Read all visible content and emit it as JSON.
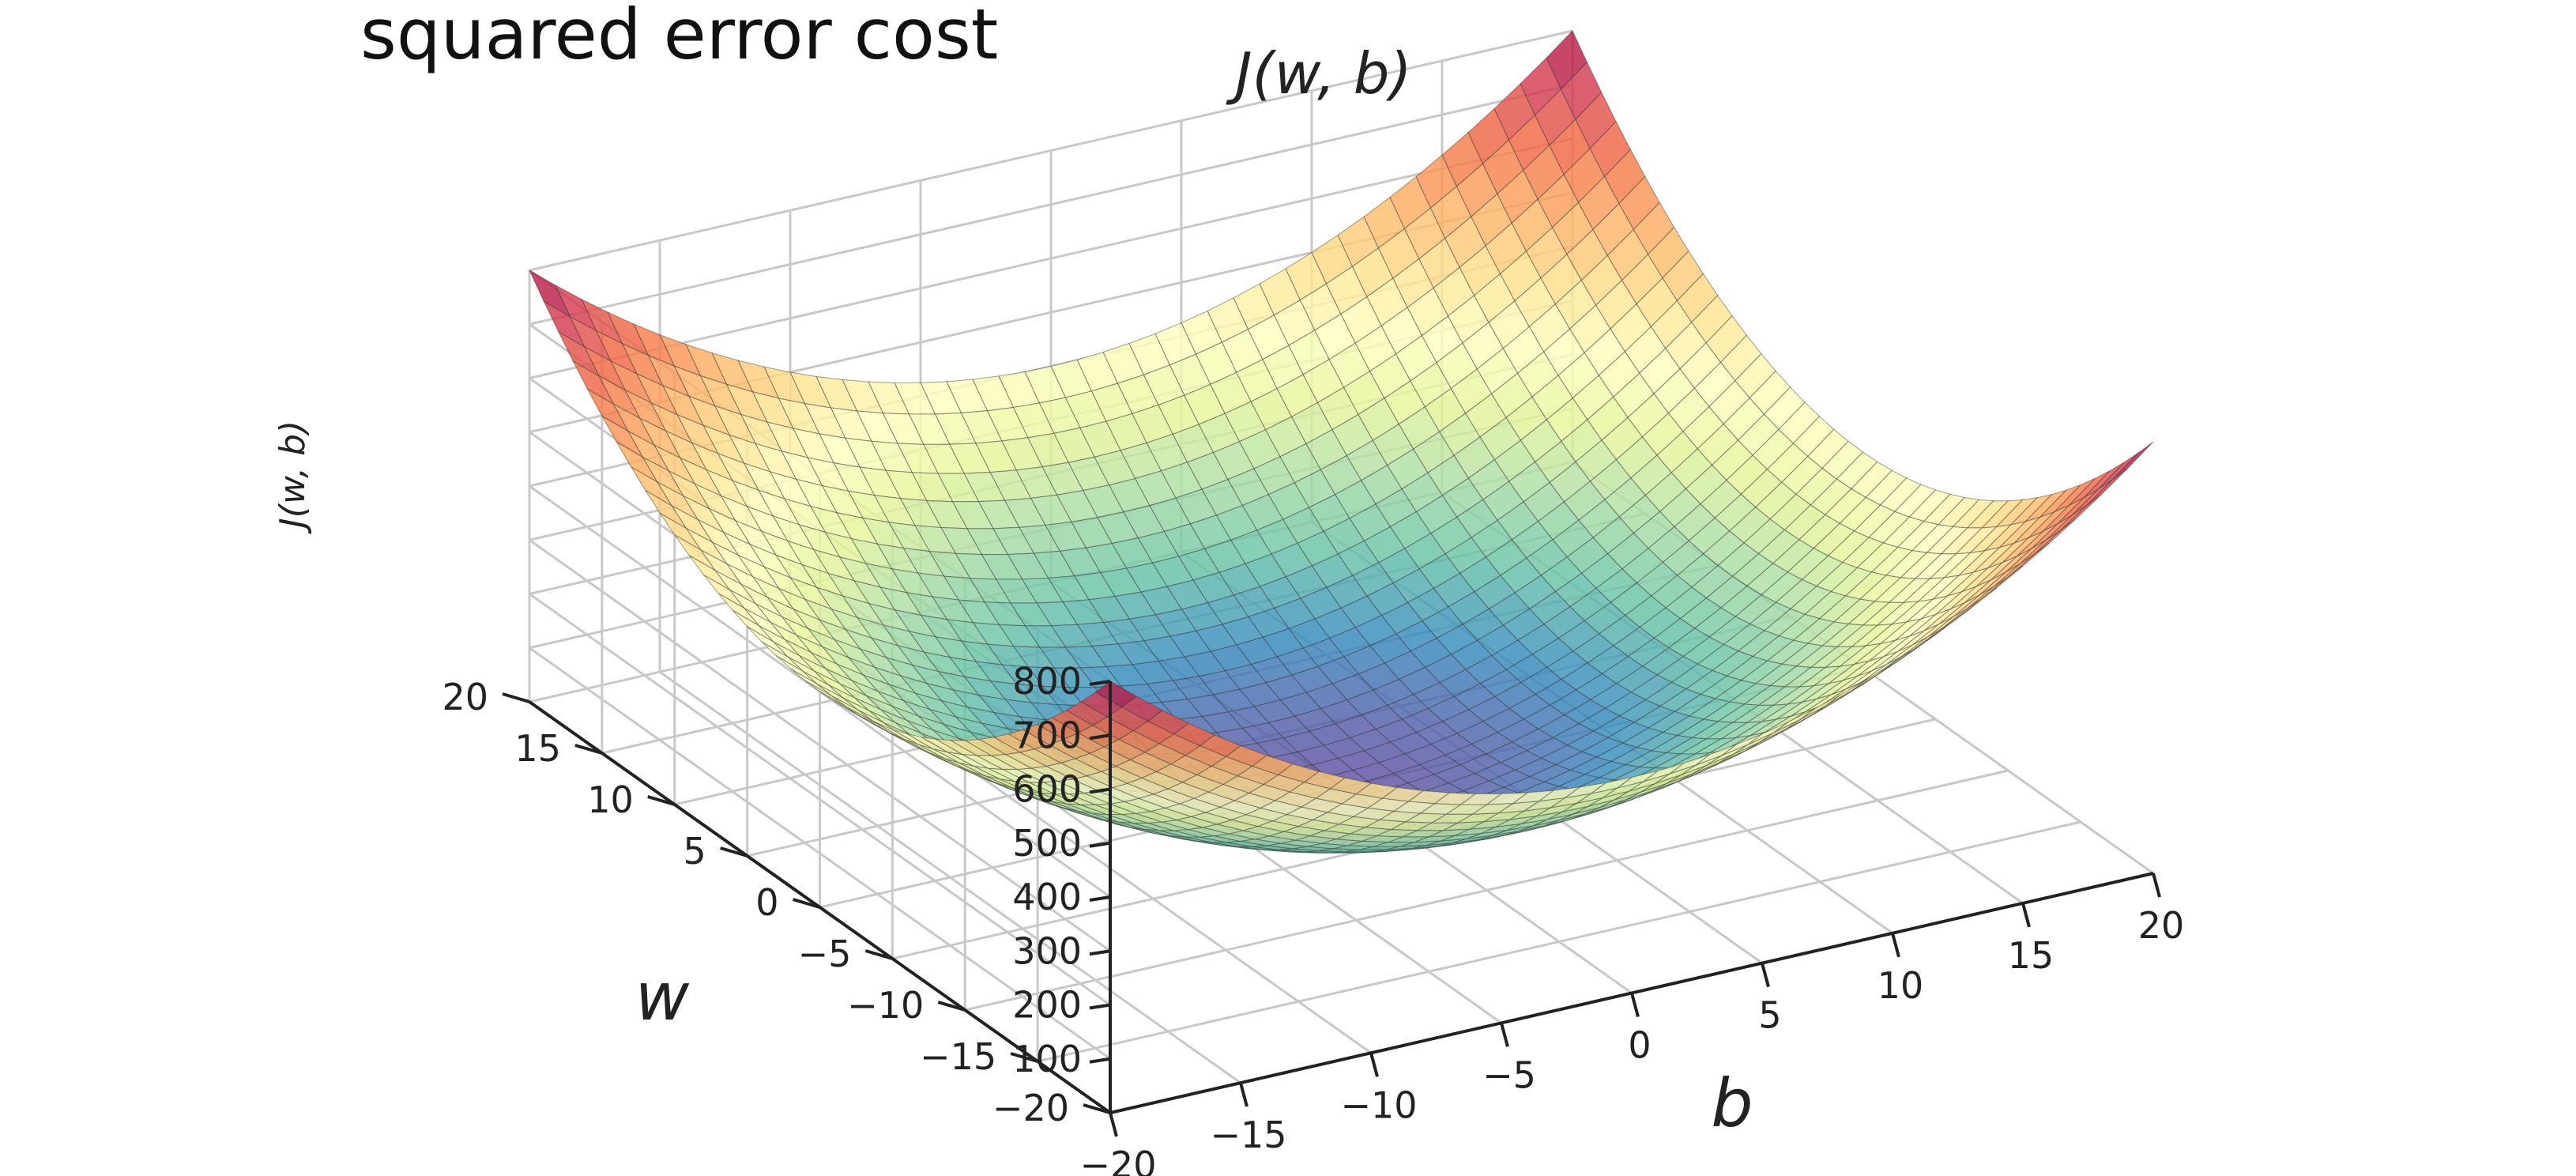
{
  "title": "squared error cost",
  "chart_data": {
    "type": "surface3d",
    "title": "J(w, b)",
    "function": "J = w^2 + b^2",
    "w_label": "w",
    "b_label": "b",
    "z_label": "J(w, b)",
    "w_range": [
      -20,
      20
    ],
    "b_range": [
      -20,
      20
    ],
    "z_range": [
      0,
      800
    ],
    "w_ticks": [
      "−20",
      "−15",
      "−10",
      "−5",
      "0",
      "5",
      "10",
      "15",
      "20"
    ],
    "b_ticks": [
      "−20",
      "−15",
      "−10",
      "−5",
      "0",
      "5",
      "10",
      "15",
      "20"
    ],
    "z_ticks": [
      "100",
      "200",
      "300",
      "400",
      "500",
      "600",
      "700",
      "800"
    ],
    "grid": true,
    "colormap": "Spectral_r"
  }
}
